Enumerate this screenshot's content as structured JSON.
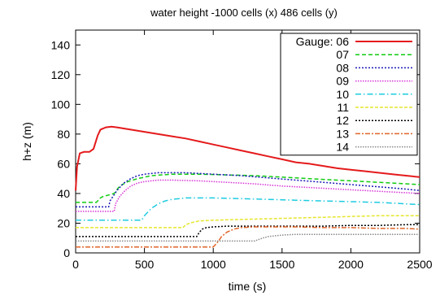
{
  "chart_data": {
    "type": "line",
    "title": "water height -1000 cells (x) 486 cells (y)",
    "xlabel": "time (s)",
    "ylabel": "h+z (m)",
    "xlim": [
      0,
      2500
    ],
    "ylim": [
      0,
      150
    ],
    "xticks": [
      0,
      500,
      1000,
      1500,
      2000,
      2500
    ],
    "yticks": [
      0,
      20,
      40,
      60,
      80,
      100,
      120,
      140
    ],
    "grid": false,
    "legend_position": "top-right",
    "series": [
      {
        "name": "Gauge: 06",
        "color": "#e41a1c",
        "dash": "",
        "x": [
          0,
          10,
          30,
          60,
          100,
          130,
          160,
          180,
          220,
          260,
          300,
          400,
          500,
          600,
          700,
          800,
          900,
          1000,
          1100,
          1200,
          1300,
          1400,
          1500,
          1600,
          1700,
          1800,
          1900,
          2000,
          2100,
          2200,
          2300,
          2400,
          2500
        ],
        "y": [
          42,
          58,
          67,
          68,
          68,
          70,
          79,
          83,
          84.5,
          85,
          84.5,
          83,
          81.5,
          80,
          78.5,
          77,
          75,
          73,
          71,
          69,
          67,
          65,
          63,
          61,
          60,
          58.5,
          57,
          56,
          55,
          54,
          53,
          52,
          51
        ]
      },
      {
        "name": "07",
        "color": "#11cc11",
        "dash": "5,3",
        "x": [
          0,
          150,
          180,
          200,
          240,
          280,
          320,
          380,
          450,
          550,
          700,
          900,
          1100,
          1300,
          1500,
          1700,
          1900,
          2100,
          2300,
          2500
        ],
        "y": [
          34,
          34,
          37,
          38,
          39,
          40,
          45,
          48,
          50,
          52,
          53,
          53,
          52.5,
          52,
          51,
          50,
          49,
          48,
          47,
          46
        ]
      },
      {
        "name": "08",
        "color": "#1a1ab8",
        "dash": "2,2",
        "x": [
          0,
          240,
          250,
          300,
          350,
          400,
          450,
          500,
          600,
          700,
          800,
          1000,
          1200,
          1400,
          1600,
          1800,
          2000,
          2200,
          2400,
          2500
        ],
        "y": [
          31,
          31,
          35,
          42,
          47,
          50,
          52,
          53,
          54,
          54,
          54,
          53,
          52,
          50.5,
          49,
          47.5,
          46,
          44.5,
          43,
          42
        ]
      },
      {
        "name": "09",
        "color": "#d633d6",
        "dash": "1.5,1.5",
        "x": [
          0,
          280,
          290,
          320,
          360,
          400,
          450,
          500,
          600,
          700,
          900,
          1100,
          1300,
          1500,
          1700,
          1900,
          2100,
          2300,
          2500
        ],
        "y": [
          28,
          28,
          33,
          38,
          42,
          45,
          47,
          48,
          49,
          49,
          48.5,
          47.5,
          46.5,
          45,
          44,
          43,
          42,
          41,
          40
        ]
      },
      {
        "name": "10",
        "color": "#1ecbe1",
        "dash": "7,3,1.5,3",
        "x": [
          0,
          480,
          500,
          550,
          600,
          650,
          700,
          800,
          900,
          1000,
          1200,
          1400,
          1600,
          1800,
          2000,
          2200,
          2400,
          2500
        ],
        "y": [
          22,
          22,
          25,
          30,
          33,
          35,
          36,
          37,
          37,
          37,
          36.5,
          36,
          35.5,
          35,
          34.5,
          34,
          33,
          32.5
        ]
      },
      {
        "name": "11",
        "color": "#e6e62e",
        "dash": "4,2",
        "x": [
          0,
          780,
          800,
          830,
          870,
          900,
          1000,
          1200,
          1400,
          1600,
          1800,
          2000,
          2200,
          2400,
          2500
        ],
        "y": [
          17,
          17,
          19,
          20,
          21,
          21.5,
          22,
          22.5,
          23,
          23.5,
          24,
          24.5,
          25,
          25,
          25
        ]
      },
      {
        "name": "12",
        "color": "#000000",
        "dash": "2,2",
        "x": [
          0,
          880,
          900,
          920,
          950,
          1000,
          1100,
          1200,
          1400,
          1600,
          1800,
          2000,
          2200,
          2400,
          2500
        ],
        "y": [
          11,
          11,
          14,
          16,
          17,
          17.5,
          18,
          18,
          18,
          18,
          18,
          18.5,
          18.5,
          19,
          19
        ]
      },
      {
        "name": "13",
        "color": "#e0662b",
        "dash": "6,2,2,2",
        "x": [
          0,
          1000,
          1030,
          1060,
          1100,
          1150,
          1200,
          1300,
          1400,
          1600,
          1800,
          2000,
          2200,
          2400,
          2500
        ],
        "y": [
          4,
          4,
          7,
          11,
          14,
          16,
          17,
          17.5,
          17.5,
          17.5,
          17,
          17,
          16.5,
          16.5,
          16
        ]
      },
      {
        "name": "14",
        "color": "#888888",
        "dash": "1.5,1.5",
        "x": [
          0,
          1300,
          1330,
          1360,
          1400,
          1450,
          1500,
          1600,
          1700,
          1800,
          2000,
          2200,
          2400,
          2500
        ],
        "y": [
          8,
          8,
          9,
          10,
          11,
          11.5,
          12,
          12.5,
          12.5,
          12.5,
          12.5,
          12.5,
          12.5,
          12.5
        ]
      }
    ]
  }
}
